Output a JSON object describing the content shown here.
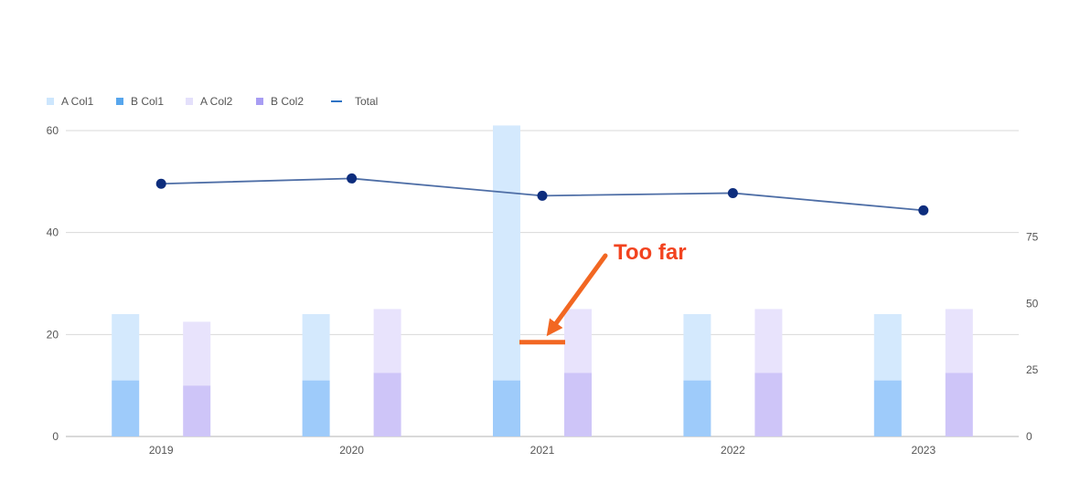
{
  "chart_data": {
    "type": "bar",
    "categories": [
      "2019",
      "2020",
      "2021",
      "2022",
      "2023"
    ],
    "stacks": [
      {
        "name": "Col1",
        "segments": [
          {
            "series": "B Col1",
            "values": [
              11,
              11,
              11,
              11,
              11
            ],
            "color": "#9ecbfa"
          },
          {
            "series": "A Col1",
            "values": [
              13,
              13,
              50,
              13,
              13
            ],
            "color": "#d4e9fd"
          }
        ]
      },
      {
        "name": "Col2",
        "segments": [
          {
            "series": "B Col2",
            "values": [
              10,
              12.5,
              12.5,
              12.5,
              12.5
            ],
            "color": "#cec5f8"
          },
          {
            "series": "A Col2",
            "values": [
              12.5,
              12.5,
              12.5,
              12.5,
              12.5
            ],
            "color": "#e8e3fc"
          }
        ]
      }
    ],
    "line_series": {
      "name": "Total",
      "axis": "right",
      "values": [
        95,
        97,
        90.5,
        91.5,
        85
      ],
      "line_color": "#4e6ea6",
      "marker_color": "#0d2d7d"
    },
    "legend": [
      {
        "label": "A Col1",
        "type": "square",
        "color": "#cde6fd"
      },
      {
        "label": "B Col1",
        "type": "square",
        "color": "#57a6ed"
      },
      {
        "label": "A Col2",
        "type": "square",
        "color": "#e4e0fb"
      },
      {
        "label": "B Col2",
        "type": "square",
        "color": "#a89df3"
      },
      {
        "label": "Total",
        "type": "line",
        "color": "#2f73c4"
      }
    ],
    "legend_position": "top-left",
    "left_axis": {
      "ylim": [
        0,
        60
      ],
      "ticks": [
        0,
        20,
        40,
        60
      ]
    },
    "right_axis": {
      "ylim": [
        0,
        115
      ],
      "ticks": [
        0,
        25,
        50,
        75
      ]
    },
    "grid": true,
    "annotation": {
      "text": "Too far",
      "color": "#f26722",
      "text_color": "#f2431f",
      "marker_category": "2021",
      "marker_value": 18.5
    }
  }
}
